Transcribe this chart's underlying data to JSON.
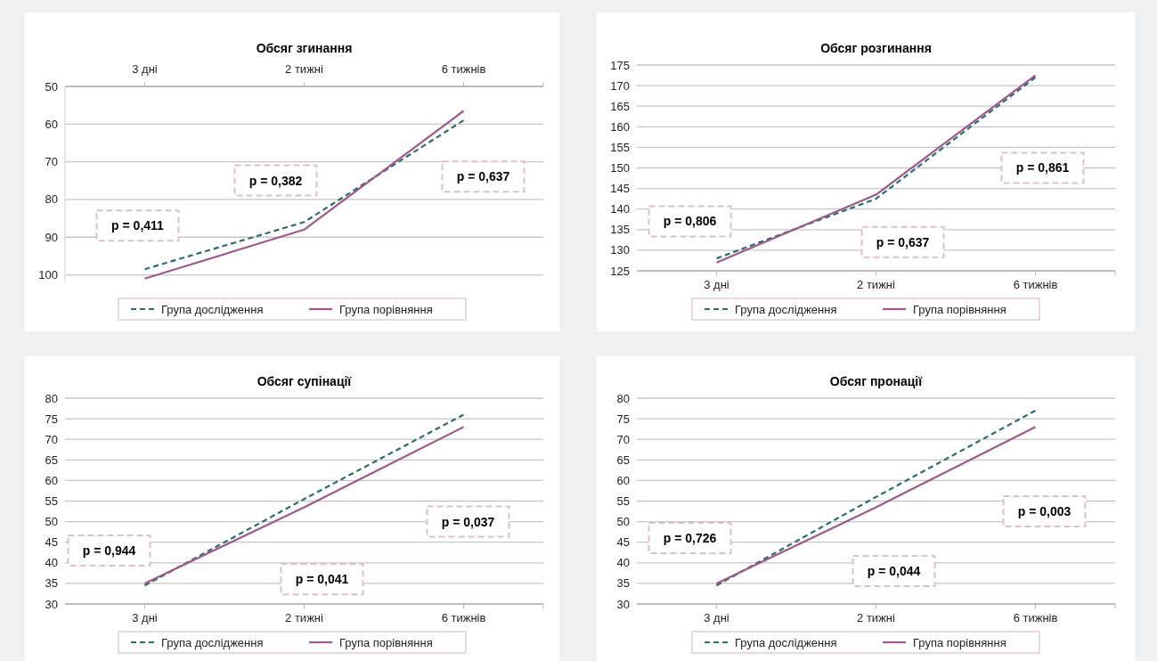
{
  "chart_data": [
    {
      "type": "line",
      "title": "Обсяг згинання",
      "categories": [
        "3 дні",
        "2 тижні",
        "6 тижнів"
      ],
      "ylim": [
        102,
        50
      ],
      "yticks": [
        50,
        60,
        70,
        80,
        90,
        100
      ],
      "grid": "y",
      "legend": "bottom",
      "series": [
        {
          "name": "Група дослідження",
          "color": "#2f6b6b",
          "line_style": "dashed",
          "values": [
            98.5,
            86,
            59
          ]
        },
        {
          "name": "Група порівняння",
          "color": "#9b5a8c",
          "line_style": "solid",
          "values": [
            101,
            88,
            56.5
          ]
        }
      ],
      "annotations": [
        "p = 0,411",
        "p = 0,382",
        "p = 0,637"
      ]
    },
    {
      "type": "line",
      "title": "Обсяг розгинання",
      "categories": [
        "3 дні",
        "2 тижні",
        "6 тижнів"
      ],
      "ylim": [
        125,
        175
      ],
      "yticks": [
        125,
        130,
        135,
        140,
        145,
        150,
        155,
        160,
        165,
        170,
        175
      ],
      "grid": "y",
      "legend": "bottom",
      "series": [
        {
          "name": "Група дослідження",
          "color": "#2f6b6b",
          "line_style": "dashed",
          "values": [
            128,
            142.5,
            172
          ]
        },
        {
          "name": "Група порівняння",
          "color": "#9b5a8c",
          "line_style": "solid",
          "values": [
            127,
            143.5,
            172.5
          ]
        }
      ],
      "annotations": [
        "p = 0,806",
        "p = 0,637",
        "p = 0,861"
      ]
    },
    {
      "type": "line",
      "title": "Обсяг супінації",
      "categories": [
        "3 дні",
        "2 тижні",
        "6 тижнів"
      ],
      "ylim": [
        30,
        80
      ],
      "yticks": [
        30,
        35,
        40,
        45,
        50,
        55,
        60,
        65,
        70,
        75,
        80
      ],
      "grid": "y",
      "legend": "bottom",
      "series": [
        {
          "name": "Група дослідження",
          "color": "#2f6b6b",
          "line_style": "dashed",
          "values": [
            34.5,
            55.5,
            76
          ]
        },
        {
          "name": "Група порівняння",
          "color": "#9b5a8c",
          "line_style": "solid",
          "values": [
            35,
            53.5,
            73
          ]
        }
      ],
      "annotations": [
        "p = 0,944",
        "p = 0,041",
        "p = 0,037"
      ]
    },
    {
      "type": "line",
      "title": "Обсяг пронації",
      "categories": [
        "3 дні",
        "2 тижні",
        "6 тижнів"
      ],
      "ylim": [
        30,
        80
      ],
      "yticks": [
        30,
        35,
        40,
        45,
        50,
        55,
        60,
        65,
        70,
        75,
        80
      ],
      "grid": "y",
      "legend": "bottom",
      "series": [
        {
          "name": "Група дослідження",
          "color": "#2f6b6b",
          "line_style": "dashed",
          "values": [
            34.5,
            56,
            77
          ]
        },
        {
          "name": "Група порівняння",
          "color": "#9b5a8c",
          "line_style": "solid",
          "values": [
            35,
            53.5,
            73
          ]
        }
      ],
      "annotations": [
        "p = 0,726",
        "p = 0,044",
        "p = 0,003"
      ]
    }
  ]
}
